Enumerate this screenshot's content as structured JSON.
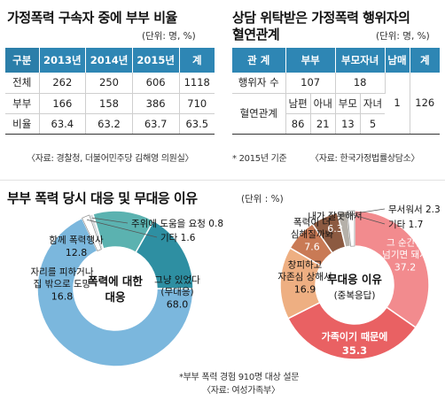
{
  "table1": {
    "title": "가정폭력 구속자 중에 부부 비율",
    "unit": "(단위: 명, %)",
    "headers": [
      "구분",
      "2013년",
      "2014년",
      "2015년",
      "계"
    ],
    "rows": [
      [
        "전체",
        "262",
        "250",
        "606",
        "1118"
      ],
      [
        "부부",
        "166",
        "158",
        "386",
        "710"
      ],
      [
        "비율",
        "63.4",
        "63.2",
        "63.7",
        "63.5"
      ]
    ],
    "source": "〈자료: 경찰청, 더불어민주당 김해영 의원실〉"
  },
  "table2": {
    "title_line1": "상담 위탁받은 가정폭력 행위자의",
    "title_line2": "혈연관계",
    "unit": "(단위: 명, %)",
    "headers": [
      "관 계",
      "부부",
      "부모자녀",
      "남매",
      "계"
    ],
    "row1_label": "행위자 수",
    "row1_couple": "107",
    "row1_parent": "18",
    "row2_label": "혈연관계",
    "sub_headers": [
      "남편",
      "아내",
      "부모",
      "자녀"
    ],
    "sub_values": [
      "86",
      "21",
      "13",
      "5"
    ],
    "siblings": "1",
    "total": "126",
    "footnote": "* 2015년 기준",
    "source": "〈자료: 한국가정법률상담소〉"
  },
  "bottom": {
    "title": "부부 폭력 당시 대응 및 무대응 이유",
    "unit": "(단위 : %)",
    "survey_note": "*부부 폭력 경험 910명 대상 설문",
    "source": "〈자료: 여성가족부〉"
  },
  "chart_data": [
    {
      "type": "pie",
      "donut": true,
      "center_label": [
        "폭력에 대한",
        "대응"
      ],
      "slices": [
        {
          "label": "그냥 있었다 (무대응)",
          "label_lines": [
            "그냥 있었다",
            "(무대응)"
          ],
          "value": 68.0,
          "display": "68.0",
          "color": "#7bb7dd"
        },
        {
          "label": "기타",
          "label_lines": [
            "기타"
          ],
          "value": 1.6,
          "display": "1.6",
          "color": "#ffffff"
        },
        {
          "label": "주위에 도움을 요청",
          "label_lines": [
            "주위에 도움을 요청"
          ],
          "value": 0.8,
          "display": "0.8",
          "color": "#d8dcdf"
        },
        {
          "label": "함께 폭력행사",
          "label_lines": [
            "함께 폭력행사"
          ],
          "value": 12.8,
          "display": "12.8",
          "color": "#5bb2b0"
        },
        {
          "label": "자리를 피하거나 집 밖으로 도망",
          "label_lines": [
            "자리를 피하거나",
            "집 밖으로 도망"
          ],
          "value": 16.8,
          "display": "16.8",
          "color": "#2e8fa2"
        }
      ]
    },
    {
      "type": "pie",
      "donut": true,
      "center_label": [
        "무대응 이유",
        "(중복응답)"
      ],
      "slices": [
        {
          "label": "그 순간만 넘기면 돼서",
          "label_lines": [
            "그 순간만",
            "넘기면 돼서"
          ],
          "value": 37.2,
          "display": "37.2",
          "color": "#f28b8e"
        },
        {
          "label": "가족이기 때문에",
          "label_lines": [
            "가족이기 때문에"
          ],
          "value": 35.3,
          "display": "35.3",
          "color": "#e96163"
        },
        {
          "label": "창피하고 자존심 상해서",
          "label_lines": [
            "창피하고",
            "자존심 상해서"
          ],
          "value": 16.9,
          "display": "16.9",
          "color": "#eeaf82"
        },
        {
          "label": "폭력이 더 심해질까봐",
          "label_lines": [
            "폭력이 더",
            "심해질까봐"
          ],
          "value": 7.6,
          "display": "7.6",
          "color": "#c97a55"
        },
        {
          "label": "내가 잘못해서",
          "label_lines": [
            "내가 잘못해서"
          ],
          "value": 6.3,
          "display": "6.3",
          "color": "#8c5a41"
        },
        {
          "label": "무서워서",
          "label_lines": [
            "무서워서"
          ],
          "value": 2.3,
          "display": "2.3",
          "color": "#b5b0a9"
        },
        {
          "label": "기타",
          "label_lines": [
            "기타"
          ],
          "value": 1.7,
          "display": "1.7",
          "color": "#ffffff"
        }
      ]
    }
  ]
}
